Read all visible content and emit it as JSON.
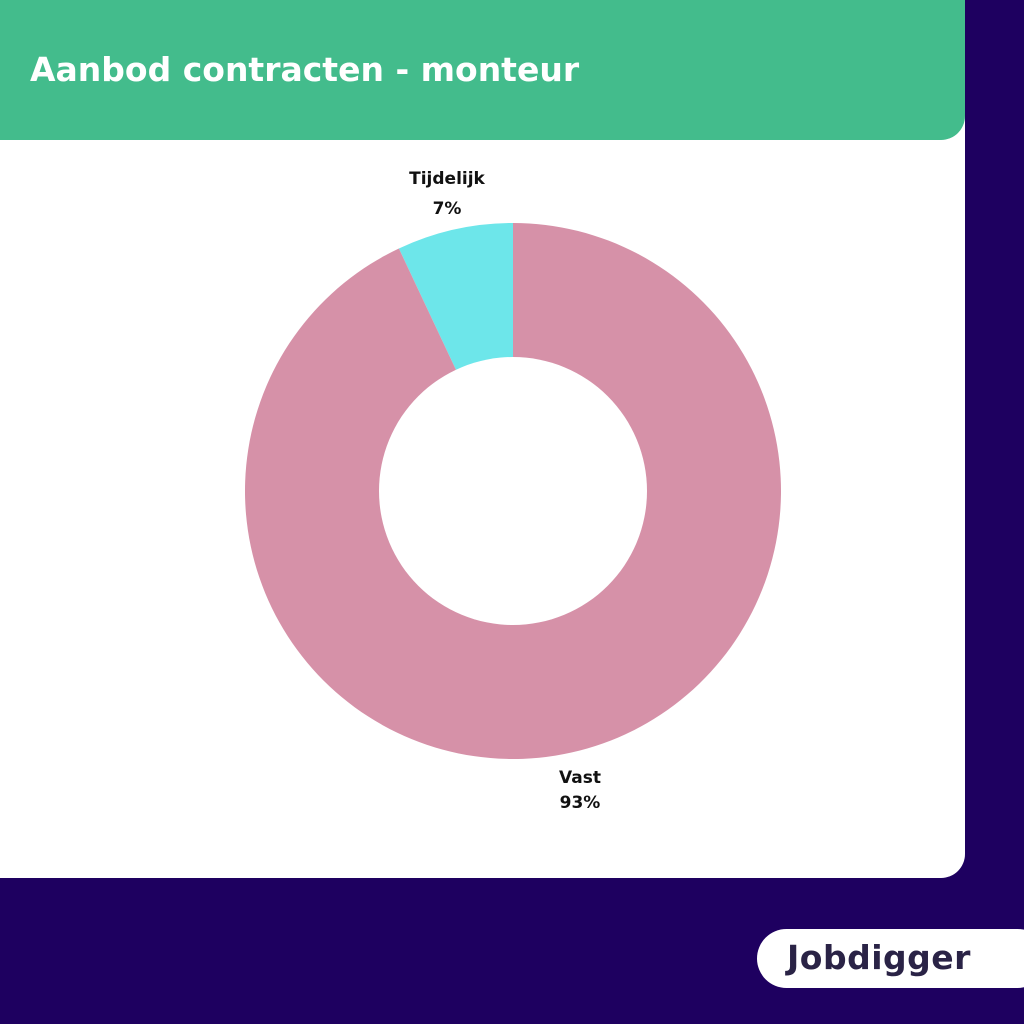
{
  "title": "Aanbod contracten - monteur",
  "colors": {
    "background": "#1e0060",
    "header": "#43bc8c",
    "card": "#ffffff"
  },
  "chart_data": {
    "type": "pie",
    "donut": true,
    "series": [
      {
        "name": "Tijdelijk",
        "value": 7,
        "label": "7%",
        "color": "#6de6ea"
      },
      {
        "name": "Vast",
        "value": 93,
        "label": "93%",
        "color": "#d691a8"
      }
    ]
  },
  "logo": {
    "text": "Jobdigger"
  }
}
